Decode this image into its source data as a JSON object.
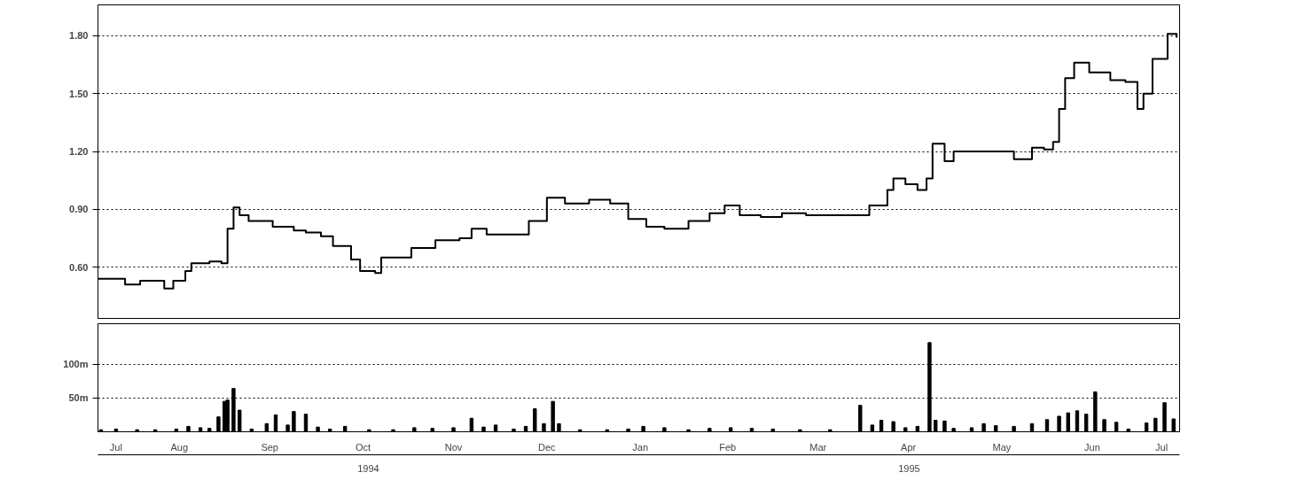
{
  "chart_data": [
    {
      "type": "step",
      "xlim": [
        "1994-07-20",
        "1995-07-14"
      ],
      "ylim": [
        0.33,
        1.96
      ],
      "yticks": [
        {
          "value": 0.6,
          "label": "0.60"
        },
        {
          "value": 0.9,
          "label": "0.90"
        },
        {
          "value": 1.2,
          "label": "1.20"
        },
        {
          "value": 1.5,
          "label": "1.50"
        },
        {
          "value": 1.8,
          "label": "1.80"
        }
      ],
      "grid": "y",
      "tick_labels": "y",
      "line_style": "solid",
      "series": [
        {
          "color": "#000000",
          "x": [
            "1994-07-20",
            "1994-07-27",
            "1994-07-29",
            "1994-08-03",
            "1994-08-11",
            "1994-08-14",
            "1994-08-18",
            "1994-08-20",
            "1994-08-26",
            "1994-08-30",
            "1994-09-01",
            "1994-09-03",
            "1994-09-05",
            "1994-09-08",
            "1994-09-16",
            "1994-09-23",
            "1994-09-27",
            "1994-10-02",
            "1994-10-06",
            "1994-10-12",
            "1994-10-15",
            "1994-10-20",
            "1994-10-22",
            "1994-10-29",
            "1994-11-01",
            "1994-11-09",
            "1994-11-17",
            "1994-11-21",
            "1994-11-26",
            "1994-12-03",
            "1994-12-10",
            "1994-12-16",
            "1994-12-22",
            "1994-12-30",
            "1995-01-06",
            "1995-01-12",
            "1995-01-18",
            "1995-01-24",
            "1995-02-01",
            "1995-02-08",
            "1995-02-13",
            "1995-02-18",
            "1995-02-25",
            "1995-03-04",
            "1995-03-12",
            "1995-03-18",
            "1995-03-28",
            "1995-04-02",
            "1995-04-08",
            "1995-04-10",
            "1995-04-14",
            "1995-04-18",
            "1995-04-21",
            "1995-04-23",
            "1995-04-27",
            "1995-04-30",
            "1995-05-07",
            "1995-05-15",
            "1995-05-20",
            "1995-05-26",
            "1995-05-30",
            "1995-06-02",
            "1995-06-04",
            "1995-06-06",
            "1995-06-09",
            "1995-06-14",
            "1995-06-21",
            "1995-06-26",
            "1995-06-30",
            "1995-07-02",
            "1995-07-05",
            "1995-07-10",
            "1995-07-13"
          ],
          "values": [
            0.54,
            0.54,
            0.51,
            0.53,
            0.49,
            0.53,
            0.58,
            0.62,
            0.63,
            0.62,
            0.8,
            0.91,
            0.87,
            0.84,
            0.81,
            0.79,
            0.78,
            0.76,
            0.71,
            0.64,
            0.58,
            0.57,
            0.65,
            0.65,
            0.7,
            0.74,
            0.75,
            0.8,
            0.77,
            0.77,
            0.84,
            0.96,
            0.93,
            0.95,
            0.93,
            0.85,
            0.81,
            0.8,
            0.84,
            0.88,
            0.92,
            0.87,
            0.86,
            0.88,
            0.87,
            0.87,
            0.87,
            0.92,
            1.0,
            1.06,
            1.03,
            1.0,
            1.06,
            1.24,
            1.15,
            1.2,
            1.2,
            1.2,
            1.16,
            1.22,
            1.21,
            1.25,
            1.42,
            1.58,
            1.66,
            1.61,
            1.57,
            1.56,
            1.42,
            1.5,
            1.68,
            1.81,
            1.79
          ]
        }
      ]
    },
    {
      "type": "bar",
      "xlim": [
        "1994-07-20",
        "1995-07-14"
      ],
      "ylim": [
        0,
        160
      ],
      "yticks": [
        {
          "value": 50,
          "label": "50m"
        },
        {
          "value": 100,
          "label": "100m"
        }
      ],
      "grid": "y",
      "xticks": [
        {
          "value": "1994-07-26",
          "label": "Jul"
        },
        {
          "value": "1994-08-16",
          "label": "Aug"
        },
        {
          "value": "1994-09-15",
          "label": "Sep"
        },
        {
          "value": "1994-10-16",
          "label": "Oct"
        },
        {
          "value": "1994-11-15",
          "label": "Nov"
        },
        {
          "value": "1994-12-16",
          "label": "Dec"
        },
        {
          "value": "1995-01-16",
          "label": "Jan"
        },
        {
          "value": "1995-02-14",
          "label": "Feb"
        },
        {
          "value": "1995-03-16",
          "label": "Mar"
        },
        {
          "value": "1995-04-15",
          "label": "Apr"
        },
        {
          "value": "1995-05-16",
          "label": "May"
        },
        {
          "value": "1995-06-15",
          "label": "Jun"
        },
        {
          "value": "1995-07-08",
          "label": "Jul"
        }
      ],
      "annotations": [
        "1994",
        "1995"
      ],
      "series": [
        {
          "color": "#000000",
          "x": [
            "1994-07-21",
            "1994-07-26",
            "1994-08-02",
            "1994-08-08",
            "1994-08-15",
            "1994-08-19",
            "1994-08-23",
            "1994-08-26",
            "1994-08-29",
            "1994-08-31",
            "1994-09-01",
            "1994-09-03",
            "1994-09-05",
            "1994-09-09",
            "1994-09-14",
            "1994-09-17",
            "1994-09-21",
            "1994-09-23",
            "1994-09-27",
            "1994-10-01",
            "1994-10-05",
            "1994-10-10",
            "1994-10-18",
            "1994-10-26",
            "1994-11-02",
            "1994-11-08",
            "1994-11-15",
            "1994-11-21",
            "1994-11-25",
            "1994-11-29",
            "1994-12-05",
            "1994-12-09",
            "1994-12-12",
            "1994-12-15",
            "1994-12-18",
            "1994-12-20",
            "1994-12-27",
            "1995-01-05",
            "1995-01-12",
            "1995-01-17",
            "1995-01-24",
            "1995-02-01",
            "1995-02-08",
            "1995-02-15",
            "1995-02-22",
            "1995-03-01",
            "1995-03-10",
            "1995-03-20",
            "1995-03-30",
            "1995-04-03",
            "1995-04-06",
            "1995-04-10",
            "1995-04-14",
            "1995-04-18",
            "1995-04-22",
            "1995-04-24",
            "1995-04-27",
            "1995-04-30",
            "1995-05-06",
            "1995-05-10",
            "1995-05-14",
            "1995-05-20",
            "1995-05-26",
            "1995-05-31",
            "1995-06-04",
            "1995-06-07",
            "1995-06-10",
            "1995-06-13",
            "1995-06-16",
            "1995-06-19",
            "1995-06-23",
            "1995-06-27",
            "1995-07-03",
            "1995-07-06",
            "1995-07-09",
            "1995-07-12"
          ],
          "values": [
            3,
            4,
            3,
            3,
            4,
            8,
            6,
            5,
            22,
            45,
            47,
            64,
            32,
            4,
            12,
            25,
            10,
            30,
            26,
            7,
            4,
            8,
            3,
            3,
            6,
            5,
            6,
            20,
            7,
            10,
            4,
            8,
            34,
            12,
            45,
            12,
            3,
            3,
            4,
            8,
            6,
            3,
            5,
            6,
            5,
            4,
            3,
            3,
            39,
            10,
            17,
            15,
            6,
            8,
            132,
            17,
            16,
            5,
            6,
            12,
            9,
            8,
            12,
            18,
            23,
            28,
            31,
            26,
            59,
            18,
            14,
            4,
            13,
            20,
            43,
            19
          ]
        }
      ]
    }
  ]
}
